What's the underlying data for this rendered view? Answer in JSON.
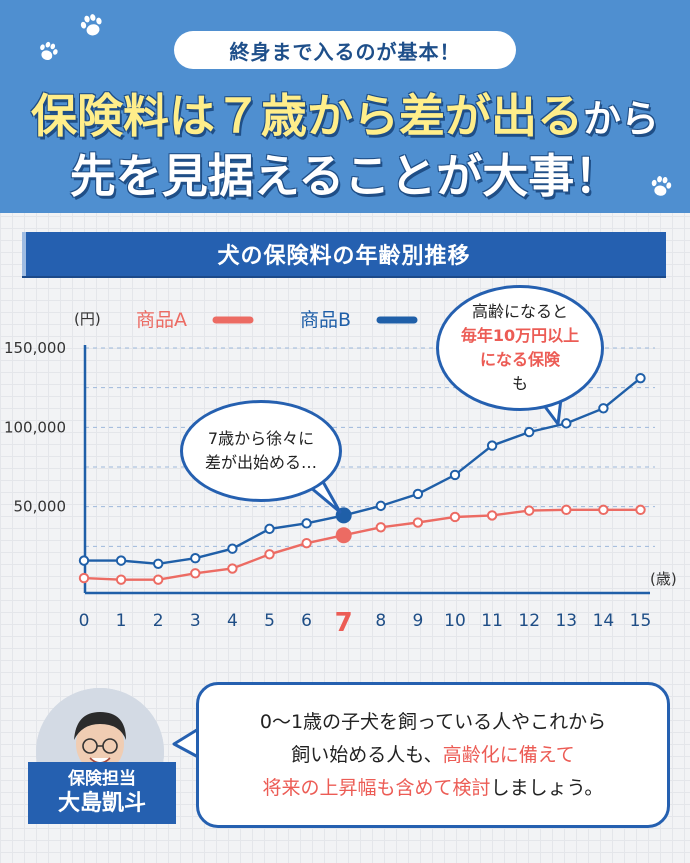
{
  "header": {
    "pill_text": "終身まで入るのが基本！",
    "headline_part1": "保険料は７歳から差が出る",
    "headline_part2": "から",
    "headline_line2": "先を見据えることが大事！"
  },
  "chart_banner_title": "犬の保険料の年齢別推移",
  "chart_data": {
    "type": "line",
    "title": "犬の保険料の年齢別推移",
    "y_unit": "(円)",
    "x_unit": "(歳)",
    "x": [
      0,
      1,
      2,
      3,
      4,
      5,
      6,
      7,
      8,
      9,
      10,
      11,
      12,
      13,
      14,
      15
    ],
    "x_highlight": 7,
    "ylim": [
      0,
      150000
    ],
    "y_ticks": [
      50000,
      100000,
      150000
    ],
    "y_tick_labels": [
      "50,000",
      "100,000",
      "150,000"
    ],
    "grid": true,
    "legend_position": "top",
    "series": [
      {
        "name": "商品A",
        "color": "#ec6b63",
        "values": [
          5000,
          4000,
          4000,
          8000,
          11000,
          20000,
          27000,
          32000,
          37000,
          40000,
          43500,
          44500,
          47500,
          48000,
          48000,
          48000
        ]
      },
      {
        "name": "商品B",
        "color": "#1f5fa8",
        "values": [
          16000,
          16000,
          14000,
          17500,
          23500,
          36000,
          39500,
          44500,
          50500,
          58000,
          70000,
          88500,
          97000,
          102500,
          112000,
          131000
        ]
      }
    ]
  },
  "bubble1": {
    "line1": "7歳から徐々に",
    "line2": "差が出始める…"
  },
  "bubble2": {
    "line1": "高齢になると",
    "line2": "毎年10万円以上",
    "line3_red": "になる保険",
    "line3_rest": "も"
  },
  "advisor": {
    "role": "保険担当",
    "name": "大島凱斗"
  },
  "comment": {
    "line1": "0〜1歳の子犬を飼っている人やこれから",
    "line2_a": "飼い始める人も、",
    "line2_red": "高齢化に備えて",
    "line3_red": "将来の上昇幅も含めて検討",
    "line3_b": "しましょう。"
  },
  "colors": {
    "header_bg": "#4f8fd0",
    "banner_bg": "#2560b0",
    "series_a": "#ec6b63",
    "series_b": "#1f5fa8",
    "highlight": "#ec5c55"
  }
}
